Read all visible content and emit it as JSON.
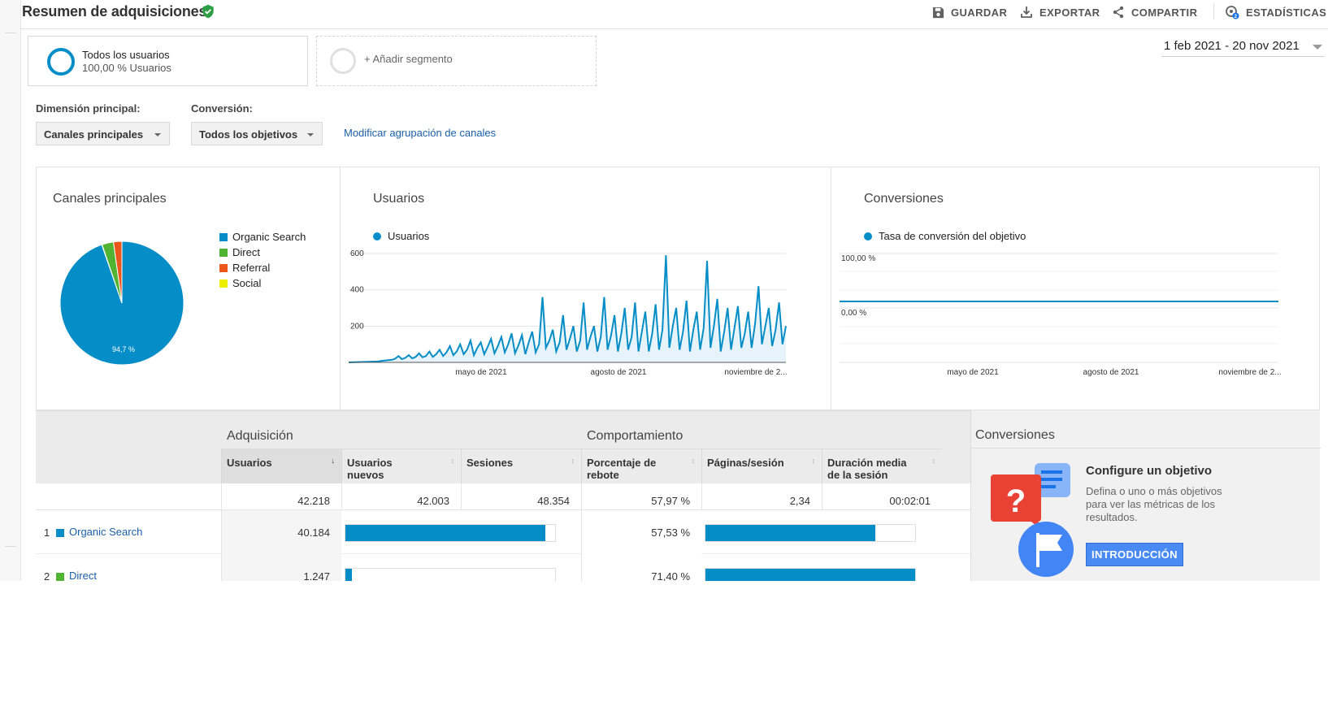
{
  "header": {
    "title": "Resumen de adquisiciones",
    "save": "GUARDAR",
    "export": "EXPORTAR",
    "share": "COMPARTIR",
    "insights": "ESTADÍSTICAS",
    "insights_badge": "2"
  },
  "segments": {
    "active_title": "Todos los usuarios",
    "active_sub": "100,00 % Usuarios",
    "add_label": "+ Añadir segmento"
  },
  "date_range": "1 feb 2021 - 20 nov 2021",
  "controls": {
    "dimension_label": "Dimensión principal:",
    "dimension_value": "Canales principales",
    "conversion_label": "Conversión:",
    "conversion_value": "Todos los objetivos",
    "modify_link": "Modificar agrupación de canales"
  },
  "colors": {
    "accent": "#058dc7",
    "organic": "#058dc7",
    "direct": "#50b432",
    "referral": "#ed561b",
    "social": "#edef00",
    "link": "#1a5fa8"
  },
  "pie": {
    "title": "Canales principales",
    "center_label": "94,7 %",
    "legend": [
      "Organic Search",
      "Direct",
      "Referral",
      "Social"
    ]
  },
  "users_chart": {
    "title": "Usuarios",
    "legend": "Usuarios",
    "yticks": [
      "600",
      "400",
      "200"
    ],
    "xticks": [
      "mayo de 2021",
      "agosto de 2021",
      "noviembre de 2..."
    ]
  },
  "conv_chart": {
    "title": "Conversiones",
    "legend": "Tasa de conversión del objetivo",
    "yticks": [
      "100,00 %",
      "0,00 %"
    ],
    "xticks": [
      "mayo de 2021",
      "agosto de 2021",
      "noviembre de 2..."
    ]
  },
  "chart_data": [
    {
      "type": "pie",
      "title": "Canales principales",
      "categories": [
        "Organic Search",
        "Direct",
        "Referral",
        "Social"
      ],
      "values": [
        94.7,
        3.0,
        2.2,
        0.1
      ],
      "labels": [
        "94,7 %"
      ]
    },
    {
      "type": "area",
      "title": "Usuarios",
      "series": [
        {
          "name": "Usuarios",
          "values": [
            5,
            8,
            10,
            12,
            14,
            20,
            35,
            18,
            25,
            40,
            22,
            30,
            50,
            28,
            35,
            60,
            30,
            45,
            70,
            35,
            55,
            90,
            40,
            60,
            100,
            45,
            70,
            120,
            40,
            80,
            110,
            45,
            85,
            130,
            50,
            90,
            140,
            55,
            100,
            160,
            50,
            95,
            150,
            45,
            110,
            170,
            55,
            100,
            360,
            80,
            120,
            180,
            60,
            110,
            260,
            70,
            130,
            200,
            60,
            120,
            330,
            70,
            140,
            200,
            60,
            140,
            360,
            70,
            150,
            260,
            60,
            160,
            300,
            70,
            140,
            330,
            60,
            170,
            280,
            60,
            160,
            320,
            70,
            180,
            590,
            80,
            200,
            300,
            70,
            170,
            340,
            60,
            180,
            280,
            70,
            190,
            560,
            80,
            200,
            350,
            60,
            170,
            300,
            70,
            190,
            310,
            80,
            160,
            280,
            80,
            210,
            420,
            100,
            200,
            300,
            90,
            180,
            330,
            100,
            200
          ]
        }
      ],
      "ylim": [
        0,
        600
      ],
      "xticks": [
        "mayo de 2021",
        "agosto de 2021",
        "noviembre de 2..."
      ]
    },
    {
      "type": "line",
      "title": "Conversiones",
      "series": [
        {
          "name": "Tasa de conversión del objetivo",
          "values": [
            0,
            0
          ]
        }
      ],
      "ylim": [
        0,
        100
      ],
      "xticks": [
        "mayo de 2021",
        "agosto de 2021",
        "noviembre de 2..."
      ]
    }
  ],
  "table": {
    "group_acquisition": "Adquisición",
    "group_behavior": "Comportamiento",
    "group_conversions": "Conversiones",
    "col_users": "Usuarios",
    "col_new_users_1": "Usuarios",
    "col_new_users_2": "nuevos",
    "col_sessions": "Sesiones",
    "col_bounce_1": "Porcentaje de",
    "col_bounce_2": "rebote",
    "col_pages": "Páginas/sesión",
    "col_duration_1": "Duración media",
    "col_duration_2": "de la sesión",
    "totals": {
      "users": "42.218",
      "new_users": "42.003",
      "sessions": "48.354",
      "bounce": "57,97 %",
      "pages": "2,34",
      "duration": "00:02:01"
    },
    "rows": [
      {
        "idx": "1",
        "name": "Organic Search",
        "users": "40.184",
        "users_share": 0.952,
        "bounce": "57,53 %",
        "bounce_share": 0.81
      },
      {
        "idx": "2",
        "name": "Direct",
        "users": "1.247",
        "users_share": 0.03,
        "bounce": "71,40 %",
        "bounce_share": 1.0
      }
    ]
  },
  "goal": {
    "title": "Configure un objetivo",
    "desc": "Defina o uno o más objetivos para ver las métricas de los resultados.",
    "button": "INTRODUCCIÓN"
  }
}
